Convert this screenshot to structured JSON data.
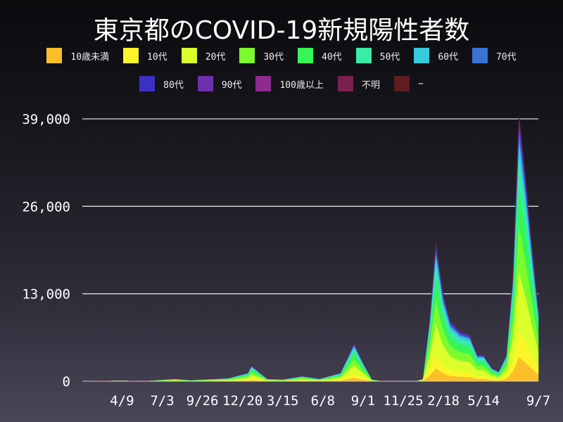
{
  "chart_data": {
    "type": "area",
    "stacked": true,
    "title": "東京都のCOVID-19新規陽性者数",
    "xlabel": "",
    "ylabel": "",
    "ylim": [
      0,
      39000
    ],
    "yticks": [
      {
        "value": 0,
        "label": "0"
      },
      {
        "value": 13000,
        "label": "13,000"
      },
      {
        "value": 26000,
        "label": "26,000"
      },
      {
        "value": 39000,
        "label": "39,000"
      }
    ],
    "xlim": [
      "2020-01-16",
      "2022-09-07"
    ],
    "xticks": [
      {
        "date": "2020-04-09",
        "label": "4/9"
      },
      {
        "date": "2020-07-03",
        "label": "7/3"
      },
      {
        "date": "2020-09-26",
        "label": "9/26"
      },
      {
        "date": "2020-12-20",
        "label": "12/20"
      },
      {
        "date": "2021-03-15",
        "label": "3/15"
      },
      {
        "date": "2021-06-08",
        "label": "6/8"
      },
      {
        "date": "2021-09-01",
        "label": "9/1"
      },
      {
        "date": "2021-11-25",
        "label": "11/25"
      },
      {
        "date": "2022-02-18",
        "label": "2/18"
      },
      {
        "date": "2022-05-14",
        "label": "5/14"
      },
      {
        "date": "2022-09-07",
        "label": "9/7"
      }
    ],
    "grid": true,
    "legend_position": "top",
    "x": [
      "2020-01-16",
      "2020-04-10",
      "2020-05-15",
      "2020-07-30",
      "2020-09-01",
      "2020-11-20",
      "2020-12-31",
      "2021-01-08",
      "2021-02-10",
      "2021-03-15",
      "2021-04-25",
      "2021-06-01",
      "2021-07-15",
      "2021-08-13",
      "2021-09-01",
      "2021-09-20",
      "2021-10-15",
      "2021-11-25",
      "2021-12-20",
      "2022-01-05",
      "2022-01-20",
      "2022-02-02",
      "2022-02-18",
      "2022-03-05",
      "2022-03-25",
      "2022-04-15",
      "2022-05-01",
      "2022-05-14",
      "2022-06-01",
      "2022-06-15",
      "2022-07-01",
      "2022-07-15",
      "2022-07-28",
      "2022-08-12",
      "2022-08-25",
      "2022-09-07"
    ],
    "series": [
      {
        "name": "10歳未満",
        "color": "#fbbf2a",
        "values": [
          0,
          16,
          2,
          36,
          18,
          45,
          117,
          216,
          36,
          27,
          72,
          36,
          117,
          522,
          261,
          27,
          5,
          2,
          3,
          36,
          864,
          1890,
          1170,
          810,
          675,
          630,
          360,
          360,
          180,
          135,
          360,
          1440,
          3600,
          2700,
          1800,
          990
        ]
      },
      {
        "name": "10代",
        "color": "#fbf52a",
        "values": [
          0,
          18,
          2,
          40,
          20,
          50,
          130,
          240,
          40,
          30,
          80,
          40,
          130,
          580,
          290,
          30,
          5,
          2,
          3,
          40,
          960,
          2100,
          1300,
          900,
          750,
          700,
          400,
          400,
          200,
          150,
          400,
          1600,
          4000,
          3000,
          2000,
          1100
        ]
      },
      {
        "name": "20代",
        "color": "#daff2a",
        "values": [
          0,
          40,
          4,
          88,
          44,
          110,
          286,
          528,
          88,
          66,
          176,
          88,
          286,
          1276,
          638,
          66,
          11,
          4,
          7,
          88,
          2112,
          4620,
          2860,
          1980,
          1650,
          1540,
          880,
          880,
          440,
          330,
          880,
          3520,
          8800,
          6600,
          4400,
          2420
        ]
      },
      {
        "name": "30代",
        "color": "#7cfa2e",
        "values": [
          0,
          31,
          3,
          68,
          34,
          85,
          221,
          408,
          68,
          51,
          136,
          68,
          221,
          986,
          493,
          51,
          9,
          3,
          5,
          68,
          1632,
          3570,
          2210,
          1530,
          1275,
          1190,
          680,
          680,
          340,
          255,
          680,
          2720,
          6800,
          5100,
          3400,
          1870
        ]
      },
      {
        "name": "40代",
        "color": "#36f556",
        "values": [
          0,
          27,
          3,
          60,
          30,
          75,
          195,
          360,
          60,
          45,
          120,
          60,
          195,
          870,
          435,
          45,
          8,
          3,
          5,
          60,
          1440,
          3150,
          1950,
          1350,
          1125,
          1050,
          600,
          600,
          300,
          225,
          600,
          2400,
          6000,
          4500,
          3000,
          1650
        ]
      },
      {
        "name": "50代",
        "color": "#3aeaa8",
        "values": [
          0,
          20,
          2,
          44,
          22,
          55,
          143,
          264,
          44,
          33,
          88,
          44,
          143,
          638,
          319,
          33,
          6,
          2,
          3,
          44,
          1056,
          2310,
          1430,
          990,
          825,
          770,
          440,
          440,
          220,
          165,
          440,
          1760,
          4400,
          3300,
          2200,
          1210
        ]
      },
      {
        "name": "60代",
        "color": "#38c9dc",
        "values": [
          0,
          11,
          1,
          24,
          12,
          30,
          78,
          144,
          24,
          18,
          48,
          24,
          78,
          348,
          174,
          18,
          3,
          1,
          2,
          24,
          576,
          1260,
          780,
          540,
          450,
          420,
          240,
          240,
          120,
          90,
          240,
          960,
          2400,
          1800,
          1200,
          660
        ]
      },
      {
        "name": "70代",
        "color": "#3773d4",
        "values": [
          0,
          7,
          1,
          16,
          8,
          20,
          52,
          96,
          16,
          12,
          32,
          16,
          52,
          232,
          116,
          12,
          2,
          1,
          1,
          16,
          384,
          840,
          520,
          360,
          300,
          280,
          160,
          160,
          80,
          60,
          160,
          640,
          1600,
          1200,
          800,
          440
        ]
      },
      {
        "name": "80代",
        "color": "#3a31c4",
        "values": [
          0,
          5,
          1,
          12,
          6,
          15,
          39,
          72,
          12,
          9,
          24,
          12,
          39,
          174,
          87,
          9,
          2,
          1,
          1,
          12,
          288,
          630,
          390,
          270,
          225,
          210,
          120,
          120,
          60,
          45,
          120,
          480,
          1200,
          900,
          600,
          330
        ]
      },
      {
        "name": "90代",
        "color": "#6d2fae",
        "values": [
          0,
          3,
          0,
          6,
          3,
          8,
          20,
          36,
          6,
          5,
          12,
          6,
          20,
          87,
          44,
          5,
          1,
          0,
          0,
          6,
          144,
          315,
          195,
          135,
          113,
          105,
          60,
          60,
          30,
          23,
          60,
          240,
          600,
          450,
          300,
          165
        ]
      },
      {
        "name": "100歳以上",
        "color": "#8e2a8e",
        "values": [
          0,
          0,
          0,
          0,
          0,
          0,
          0,
          0,
          0,
          0,
          0,
          0,
          0,
          1,
          0,
          0,
          0,
          0,
          0,
          0,
          1,
          2,
          1,
          1,
          1,
          1,
          0,
          0,
          0,
          0,
          0,
          1,
          3,
          2,
          1,
          1
        ]
      },
      {
        "name": "不明",
        "color": "#7a2150",
        "values": [
          0,
          0,
          0,
          0,
          0,
          0,
          0,
          0,
          0,
          0,
          0,
          0,
          0,
          0,
          0,
          0,
          0,
          0,
          0,
          0,
          0,
          0,
          0,
          0,
          0,
          0,
          0,
          0,
          0,
          0,
          0,
          0,
          0,
          0,
          0,
          0
        ]
      },
      {
        "name": "−",
        "color": "#5e1d22",
        "values": [
          0,
          0,
          0,
          0,
          0,
          0,
          0,
          0,
          0,
          0,
          0,
          0,
          0,
          0,
          0,
          0,
          0,
          0,
          0,
          0,
          0,
          0,
          0,
          0,
          0,
          0,
          0,
          0,
          0,
          0,
          0,
          0,
          0,
          0,
          0,
          0
        ]
      }
    ]
  }
}
